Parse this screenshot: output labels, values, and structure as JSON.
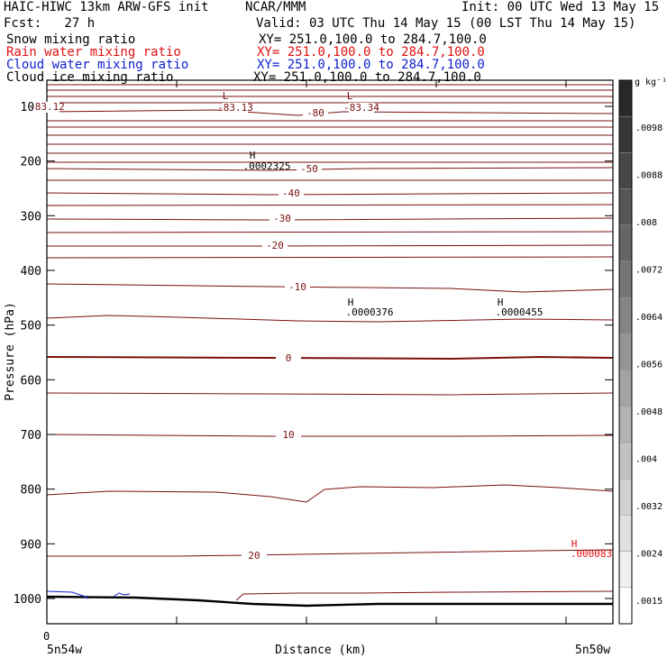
{
  "header": {
    "title_left": "HAIC-HIWC 13km ARW-GFS init",
    "center": "NCAR/MMM",
    "init": "Init: 00 UTC Wed 13 May 15",
    "fcst": "Fcst:   27 h",
    "valid": "Valid: 03 UTC Thu 14 May 15 (00 LST Thu 14 May 15)"
  },
  "fields": [
    {
      "name": "Snow mixing ratio",
      "xy": "XY= 251.0,100.0 to 284.7,100.0",
      "color": "#000000"
    },
    {
      "name": "Rain water mixing ratio",
      "xy": "XY= 251.0,100.0 to 284.7,100.0",
      "color": "#e01010"
    },
    {
      "name": "Cloud water mixing ratio",
      "xy": "XY= 251.0,100.0 to 284.7,100.0",
      "color": "#1020d0"
    },
    {
      "name": "Cloud ice mixing ratio",
      "xy": "XY= 251.0,100.0 to 284.7,100.0",
      "color": "#000000"
    }
  ],
  "chart_data": {
    "type": "line",
    "xlabel": "Distance (km)",
    "ylabel": "Pressure (hPa)",
    "x_start_label": "5n54w",
    "x_end_label": "5n50w",
    "x_zero_label": "0",
    "yticks": [
      100,
      200,
      300,
      400,
      500,
      600,
      700,
      800,
      900,
      1000
    ],
    "ylim": [
      1050,
      50
    ],
    "colorbar": {
      "unit": "g kg⁻¹",
      "labels": [
        ".0098",
        ".0088",
        ".008",
        ".0072",
        ".0064",
        ".0056",
        ".0048",
        ".004",
        ".0032",
        ".0024",
        ".0015"
      ]
    },
    "temperature_labels": [
      "-80",
      "-50",
      "-40",
      "-30",
      "-20",
      "-10",
      "0",
      "10",
      "20",
      "-83.12",
      "-83.13",
      "-83.34"
    ],
    "annotations": [
      {
        "mark": "L",
        "value": "-83.13"
      },
      {
        "mark": "L",
        "value": "-83.34"
      },
      {
        "mark": "H",
        "value": ".0002325"
      },
      {
        "mark": "H",
        "value": ".0000376"
      },
      {
        "mark": "H",
        "value": ".0000455"
      },
      {
        "mark": "H",
        "value": ".000083"
      }
    ],
    "isotherm_color": "#7a1010"
  }
}
